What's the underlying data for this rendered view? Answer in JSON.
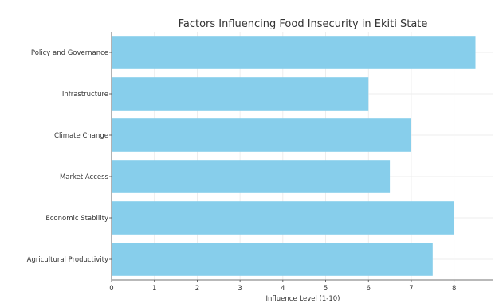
{
  "chart_data": {
    "type": "bar",
    "orientation": "horizontal",
    "title": "Factors Influencing Food Insecurity in Ekiti State",
    "xlabel": "Influence Level (1-10)",
    "ylabel": "",
    "categories": [
      "Agricultural Productivity",
      "Economic Stability",
      "Market Access",
      "Climate Change",
      "Infrastructure",
      "Policy and Governance"
    ],
    "values": [
      7.5,
      8,
      6.5,
      7,
      6,
      8.5
    ],
    "xlim": [
      0,
      8.9
    ],
    "xticks": [
      0,
      1,
      2,
      3,
      4,
      5,
      6,
      7,
      8
    ],
    "grid": true,
    "bar_color": "#87ceeb"
  }
}
